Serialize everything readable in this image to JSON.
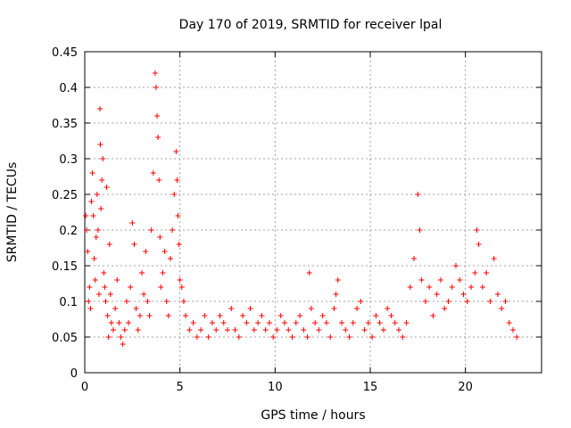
{
  "chart_data": {
    "type": "scatter",
    "title": "Day 170 of 2019, SRMTID for receiver lpal",
    "xlabel": "GPS time / hours",
    "ylabel": "SRMTID / TECUs",
    "xlim": [
      0,
      24
    ],
    "ylim": [
      0,
      0.45
    ],
    "grid": true,
    "marker": "+",
    "x_ticks": [
      0,
      5,
      10,
      15,
      20
    ],
    "x_tick_labels": [
      "0",
      "5",
      "10",
      "15",
      "20"
    ],
    "y_ticks": [
      0,
      0.05,
      0.1,
      0.15,
      0.2,
      0.25,
      0.3,
      0.35,
      0.4,
      0.45
    ],
    "y_tick_labels": [
      "0",
      "0.05",
      "0.1",
      "0.15",
      "0.2",
      "0.25",
      "0.3",
      "0.35",
      "0.4",
      "0.45"
    ],
    "series": [
      {
        "name": "SRMTID",
        "color": "#ff0000",
        "x": [
          0.05,
          0.1,
          0.15,
          0.2,
          0.25,
          0.3,
          0.35,
          0.4,
          0.45,
          0.5,
          0.55,
          0.6,
          0.65,
          0.7,
          0.75,
          0.8,
          0.82,
          0.85,
          0.9,
          0.95,
          1.0,
          1.05,
          1.1,
          1.15,
          1.2,
          1.25,
          1.3,
          1.35,
          1.4,
          1.5,
          1.6,
          1.7,
          1.8,
          1.9,
          2.0,
          2.1,
          2.2,
          2.3,
          2.4,
          2.5,
          2.6,
          2.7,
          2.8,
          2.9,
          3.0,
          3.1,
          3.2,
          3.3,
          3.4,
          3.5,
          3.6,
          3.7,
          3.75,
          3.8,
          3.85,
          3.9,
          3.95,
          4.0,
          4.1,
          4.2,
          4.3,
          4.4,
          4.5,
          4.6,
          4.7,
          4.8,
          4.85,
          4.9,
          4.95,
          5.0,
          5.1,
          5.2,
          5.3,
          5.5,
          5.7,
          5.9,
          6.1,
          6.3,
          6.5,
          6.7,
          6.9,
          7.1,
          7.3,
          7.5,
          7.7,
          7.9,
          8.1,
          8.3,
          8.5,
          8.7,
          8.9,
          9.1,
          9.3,
          9.5,
          9.7,
          9.9,
          10.1,
          10.3,
          10.5,
          10.7,
          10.9,
          11.1,
          11.3,
          11.5,
          11.7,
          11.8,
          11.9,
          12.1,
          12.3,
          12.5,
          12.7,
          12.9,
          13.1,
          13.2,
          13.3,
          13.5,
          13.7,
          13.9,
          14.1,
          14.3,
          14.5,
          14.7,
          14.9,
          15.1,
          15.3,
          15.5,
          15.7,
          15.9,
          16.1,
          16.3,
          16.5,
          16.7,
          16.9,
          17.1,
          17.3,
          17.5,
          17.6,
          17.7,
          17.9,
          18.1,
          18.3,
          18.5,
          18.7,
          18.9,
          19.1,
          19.3,
          19.5,
          19.7,
          19.9,
          20.1,
          20.3,
          20.5,
          20.6,
          20.7,
          20.9,
          21.1,
          21.3,
          21.5,
          21.7,
          21.9,
          22.1,
          22.3,
          22.5,
          22.7
        ],
        "y": [
          0.22,
          0.2,
          0.17,
          0.1,
          0.12,
          0.09,
          0.24,
          0.28,
          0.22,
          0.16,
          0.13,
          0.19,
          0.25,
          0.2,
          0.11,
          0.37,
          0.32,
          0.23,
          0.27,
          0.3,
          0.14,
          0.12,
          0.1,
          0.26,
          0.08,
          0.05,
          0.18,
          0.11,
          0.07,
          0.06,
          0.09,
          0.13,
          0.07,
          0.05,
          0.04,
          0.06,
          0.1,
          0.07,
          0.12,
          0.21,
          0.18,
          0.09,
          0.06,
          0.08,
          0.14,
          0.11,
          0.17,
          0.1,
          0.08,
          0.2,
          0.28,
          0.42,
          0.4,
          0.36,
          0.33,
          0.27,
          0.19,
          0.12,
          0.14,
          0.17,
          0.1,
          0.08,
          0.16,
          0.2,
          0.25,
          0.31,
          0.27,
          0.22,
          0.18,
          0.13,
          0.12,
          0.1,
          0.08,
          0.06,
          0.07,
          0.05,
          0.06,
          0.08,
          0.05,
          0.07,
          0.06,
          0.08,
          0.07,
          0.06,
          0.09,
          0.06,
          0.05,
          0.08,
          0.07,
          0.09,
          0.06,
          0.07,
          0.08,
          0.06,
          0.07,
          0.05,
          0.06,
          0.08,
          0.07,
          0.06,
          0.05,
          0.07,
          0.08,
          0.06,
          0.05,
          0.14,
          0.09,
          0.07,
          0.06,
          0.08,
          0.07,
          0.05,
          0.09,
          0.11,
          0.13,
          0.07,
          0.06,
          0.05,
          0.07,
          0.09,
          0.1,
          0.06,
          0.07,
          0.05,
          0.08,
          0.07,
          0.06,
          0.09,
          0.08,
          0.07,
          0.06,
          0.05,
          0.07,
          0.12,
          0.16,
          0.25,
          0.2,
          0.13,
          0.1,
          0.12,
          0.08,
          0.11,
          0.13,
          0.09,
          0.1,
          0.12,
          0.15,
          0.13,
          0.11,
          0.1,
          0.12,
          0.14,
          0.2,
          0.18,
          0.12,
          0.14,
          0.1,
          0.16,
          0.11,
          0.09,
          0.1,
          0.07,
          0.06,
          0.05
        ]
      }
    ]
  }
}
